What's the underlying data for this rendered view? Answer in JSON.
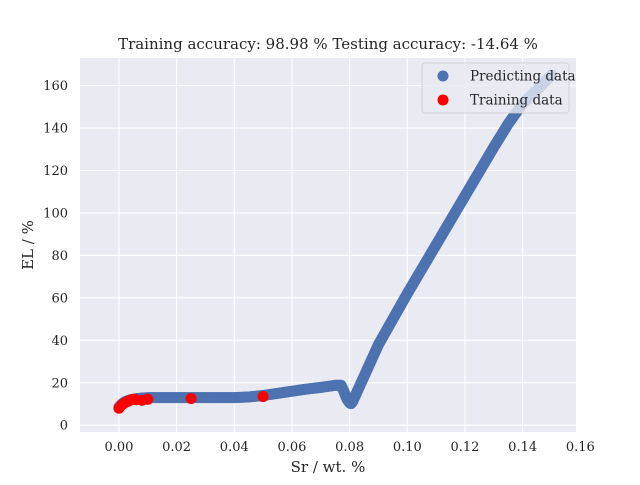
{
  "chart_data": {
    "type": "scatter",
    "title": "Training accuracy: 98.98 %  Testing accuracy: -14.64 %",
    "xlabel": "Sr / wt. %",
    "ylabel": "EL / %",
    "xlim": [
      -0.0135,
      0.1585
    ],
    "ylim": [
      -3.2,
      173
    ],
    "xticks": [
      0.0,
      0.02,
      0.04,
      0.06,
      0.08,
      0.1,
      0.12,
      0.14,
      0.16
    ],
    "xtick_labels": [
      "0.00",
      "0.02",
      "0.04",
      "0.06",
      "0.08",
      "0.10",
      "0.12",
      "0.14",
      "0.16"
    ],
    "yticks": [
      0,
      20,
      40,
      60,
      80,
      100,
      120,
      140,
      160
    ],
    "ytick_labels": [
      "0",
      "20",
      "40",
      "60",
      "80",
      "100",
      "120",
      "140",
      "160"
    ],
    "grid": true,
    "legend_position": "top-right",
    "series": [
      {
        "name": "Predicting data",
        "color": "#4c72b0",
        "marker": "circle",
        "style": "dense-curve",
        "x": [
          0.0,
          0.001,
          0.002,
          0.004,
          0.006,
          0.008,
          0.01,
          0.02,
          0.03,
          0.04,
          0.045,
          0.05,
          0.055,
          0.06,
          0.065,
          0.07,
          0.075,
          0.077,
          0.078,
          0.079,
          0.08,
          0.0805,
          0.081,
          0.083,
          0.086,
          0.09,
          0.095,
          0.1,
          0.105,
          0.11,
          0.115,
          0.12,
          0.125,
          0.13,
          0.135,
          0.14,
          0.145,
          0.15
        ],
        "y": [
          8.5,
          10.0,
          11.0,
          12.0,
          12.5,
          12.8,
          13.0,
          13.0,
          13.0,
          13.0,
          13.3,
          14.0,
          15.0,
          16.0,
          17.0,
          17.8,
          18.8,
          18.8,
          16.0,
          12.5,
          10.5,
          10.2,
          11.0,
          17.0,
          26.0,
          38.0,
          50.0,
          62.0,
          73.5,
          85.0,
          96.5,
          108.0,
          119.5,
          131.0,
          142.0,
          151.5,
          158.0,
          165.0
        ]
      },
      {
        "name": "Training data",
        "color": "#ff0000",
        "marker": "circle",
        "style": "points",
        "x": [
          0.0,
          0.001,
          0.002,
          0.003,
          0.004,
          0.005,
          0.006,
          0.008,
          0.01,
          0.025,
          0.05
        ],
        "y": [
          8.0,
          9.5,
          10.5,
          11.2,
          11.8,
          12.3,
          12.0,
          11.7,
          12.2,
          12.6,
          13.5
        ]
      }
    ]
  }
}
